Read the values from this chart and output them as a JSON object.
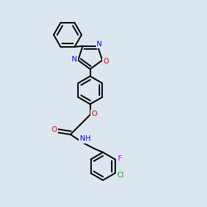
{
  "bg_color": "#dce6f0",
  "bond_color": "#000000",
  "bond_width": 1.5,
  "ring_r": 0.068,
  "colors": {
    "N": "#0000dd",
    "O": "#dd0000",
    "NH": "#0000dd",
    "F": "#cc00cc",
    "Cl": "#00aa00"
  }
}
